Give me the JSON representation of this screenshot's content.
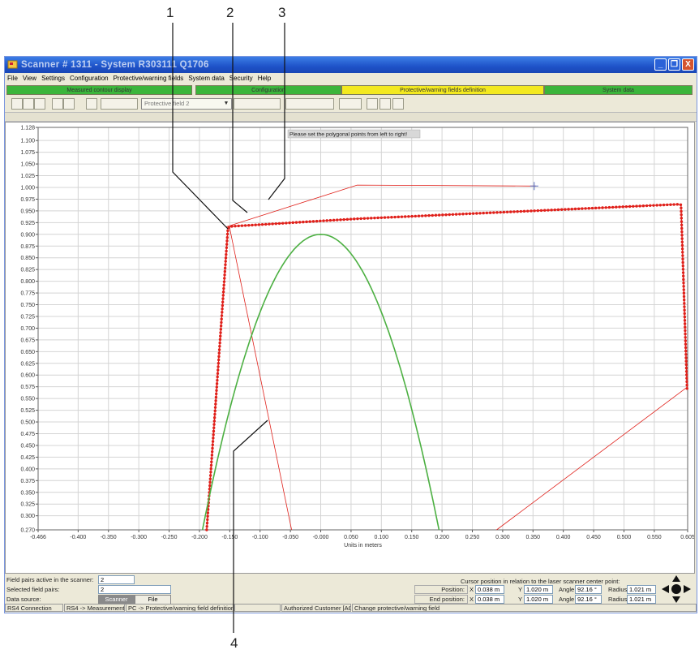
{
  "callouts": [
    "1",
    "2",
    "3",
    "4"
  ],
  "window": {
    "title": "Scanner   # 1311 - System  R303111  Q1706",
    "controls": {
      "minimize": "_",
      "maximize": "❐",
      "close": "X"
    }
  },
  "menu": [
    "File",
    "View",
    "Settings",
    "Configuration",
    "Protective/warning fields",
    "System data",
    "Security",
    "Help"
  ],
  "tabs": [
    {
      "label": "Measured contour display",
      "color": "#3bb53b"
    },
    {
      "label": "Configuration",
      "color": "#3bb53b"
    },
    {
      "label": "Protective/warning fields definition",
      "color": "#f3e91f",
      "active": true
    },
    {
      "label": "System data",
      "color": "#3bb53b"
    }
  ],
  "toolbar": {
    "field_select": "Protective field 2",
    "icons": [
      "zoom-in-icon",
      "zoom-out-icon",
      "zoom-fit-icon",
      "print-icon",
      "open-icon",
      "scanner-icon",
      "field-edit-icon",
      "line-tool-icon",
      "polygon-tool-icon",
      "delete-icon",
      "undo-icon"
    ]
  },
  "hint": "Please set the polygonal points from left to right!",
  "chart_data": {
    "type": "line",
    "xlabel": "Units in meters",
    "xlim": [
      -0.466,
      0.605
    ],
    "ylim": [
      0.27,
      1.128
    ],
    "x_ticks": [
      -0.466,
      -0.4,
      -0.35,
      -0.3,
      -0.25,
      -0.2,
      -0.15,
      -0.1,
      -0.05,
      0.0,
      0.05,
      0.1,
      0.15,
      0.2,
      0.25,
      0.3,
      0.35,
      0.4,
      0.45,
      0.5,
      0.55,
      0.605
    ],
    "x_tick_labels": [
      "-0.466",
      "-0.400",
      "-0.350",
      "-0.300",
      "-0.250",
      "-0.200",
      "-0.150",
      "-0.100",
      "-0.050",
      "-0.000",
      "0.050",
      "0.100",
      "0.150",
      "0.200",
      "0.250",
      "0.300",
      "0.350",
      "0.400",
      "0.450",
      "0.500",
      "0.550",
      "0.605"
    ],
    "y_ticks": [
      0.27,
      0.3,
      0.325,
      0.35,
      0.375,
      0.4,
      0.425,
      0.45,
      0.475,
      0.5,
      0.525,
      0.55,
      0.575,
      0.6,
      0.625,
      0.65,
      0.675,
      0.7,
      0.725,
      0.75,
      0.775,
      0.8,
      0.825,
      0.85,
      0.875,
      0.9,
      0.925,
      0.95,
      0.975,
      1.0,
      1.025,
      1.05,
      1.075,
      1.1,
      1.128
    ],
    "y_tick_labels": [
      "0.270",
      "0.300",
      "0.325",
      "0.350",
      "0.375",
      "0.400",
      "0.425",
      "0.450",
      "0.475",
      "0.500",
      "0.525",
      "0.550",
      "0.575",
      "0.600",
      "0.625",
      "0.650",
      "0.675",
      "0.700",
      "0.725",
      "0.750",
      "0.775",
      "0.800",
      "0.825",
      "0.850",
      "0.875",
      "0.900",
      "0.925",
      "0.950",
      "0.975",
      "1.000",
      "1.025",
      "1.050",
      "1.075",
      "1.100",
      "1.128"
    ],
    "grid": true,
    "series": [
      {
        "style": "dotted-thick",
        "color": "#e0201a",
        "x": [
          -0.188,
          -0.153,
          -0.148,
          0.058,
          0.589,
          0.594,
          0.604
        ],
        "y": [
          0.27,
          0.913,
          0.917,
          0.933,
          0.964,
          0.963,
          0.57
        ]
      },
      {
        "style": "thin",
        "color": "#e0201a",
        "x": [
          -0.156,
          0.06,
          0.355
        ],
        "y": [
          0.916,
          1.005,
          1.003
        ]
      },
      {
        "style": "thin",
        "color": "#e0201a",
        "x": [
          -0.15,
          -0.048
        ],
        "y": [
          0.913,
          0.27
        ]
      },
      {
        "style": "thin",
        "color": "#e0201a",
        "x": [
          0.605,
          0.29
        ],
        "y": [
          0.575,
          0.27
        ]
      },
      {
        "style": "solid",
        "color": "#4cb042",
        "parabola": {
          "vertex_x": 0.0,
          "vertex_y": 0.9,
          "roots": [
            -0.195,
            0.195
          ]
        }
      }
    ],
    "cursor_marker": {
      "x": 0.352,
      "y": 1.003
    }
  },
  "bottom": {
    "field_pairs_label": "Field pairs active in the scanner:",
    "field_pairs_value": "2",
    "selected_label": "Selected field pairs:",
    "selected_value": "2",
    "source_label": "Data source:",
    "source_scanner": "Scanner",
    "source_file": "File",
    "cursor_title": "Cursor position in relation to the laser scanner center point:",
    "position_label": "Position:",
    "end_label": "End position:",
    "x_label": "X",
    "y_label": "Y",
    "angle_label": "Angle",
    "radius_label": "Radius",
    "pos_x": "0.038 m",
    "pos_y": "1.020 m",
    "pos_angle": "92.16 °",
    "pos_radius": "1.021 m",
    "end_x": "0.038 m",
    "end_y": "1.020 m",
    "end_angle": "92.16 °",
    "end_radius": "1.021 m"
  },
  "status": [
    "RS4 Connection",
    "RS4 -> Measurement m",
    "PC -> Protective/warning field definition",
    "",
    "Authorized Customer [AC]",
    "Change protective/warning field"
  ]
}
